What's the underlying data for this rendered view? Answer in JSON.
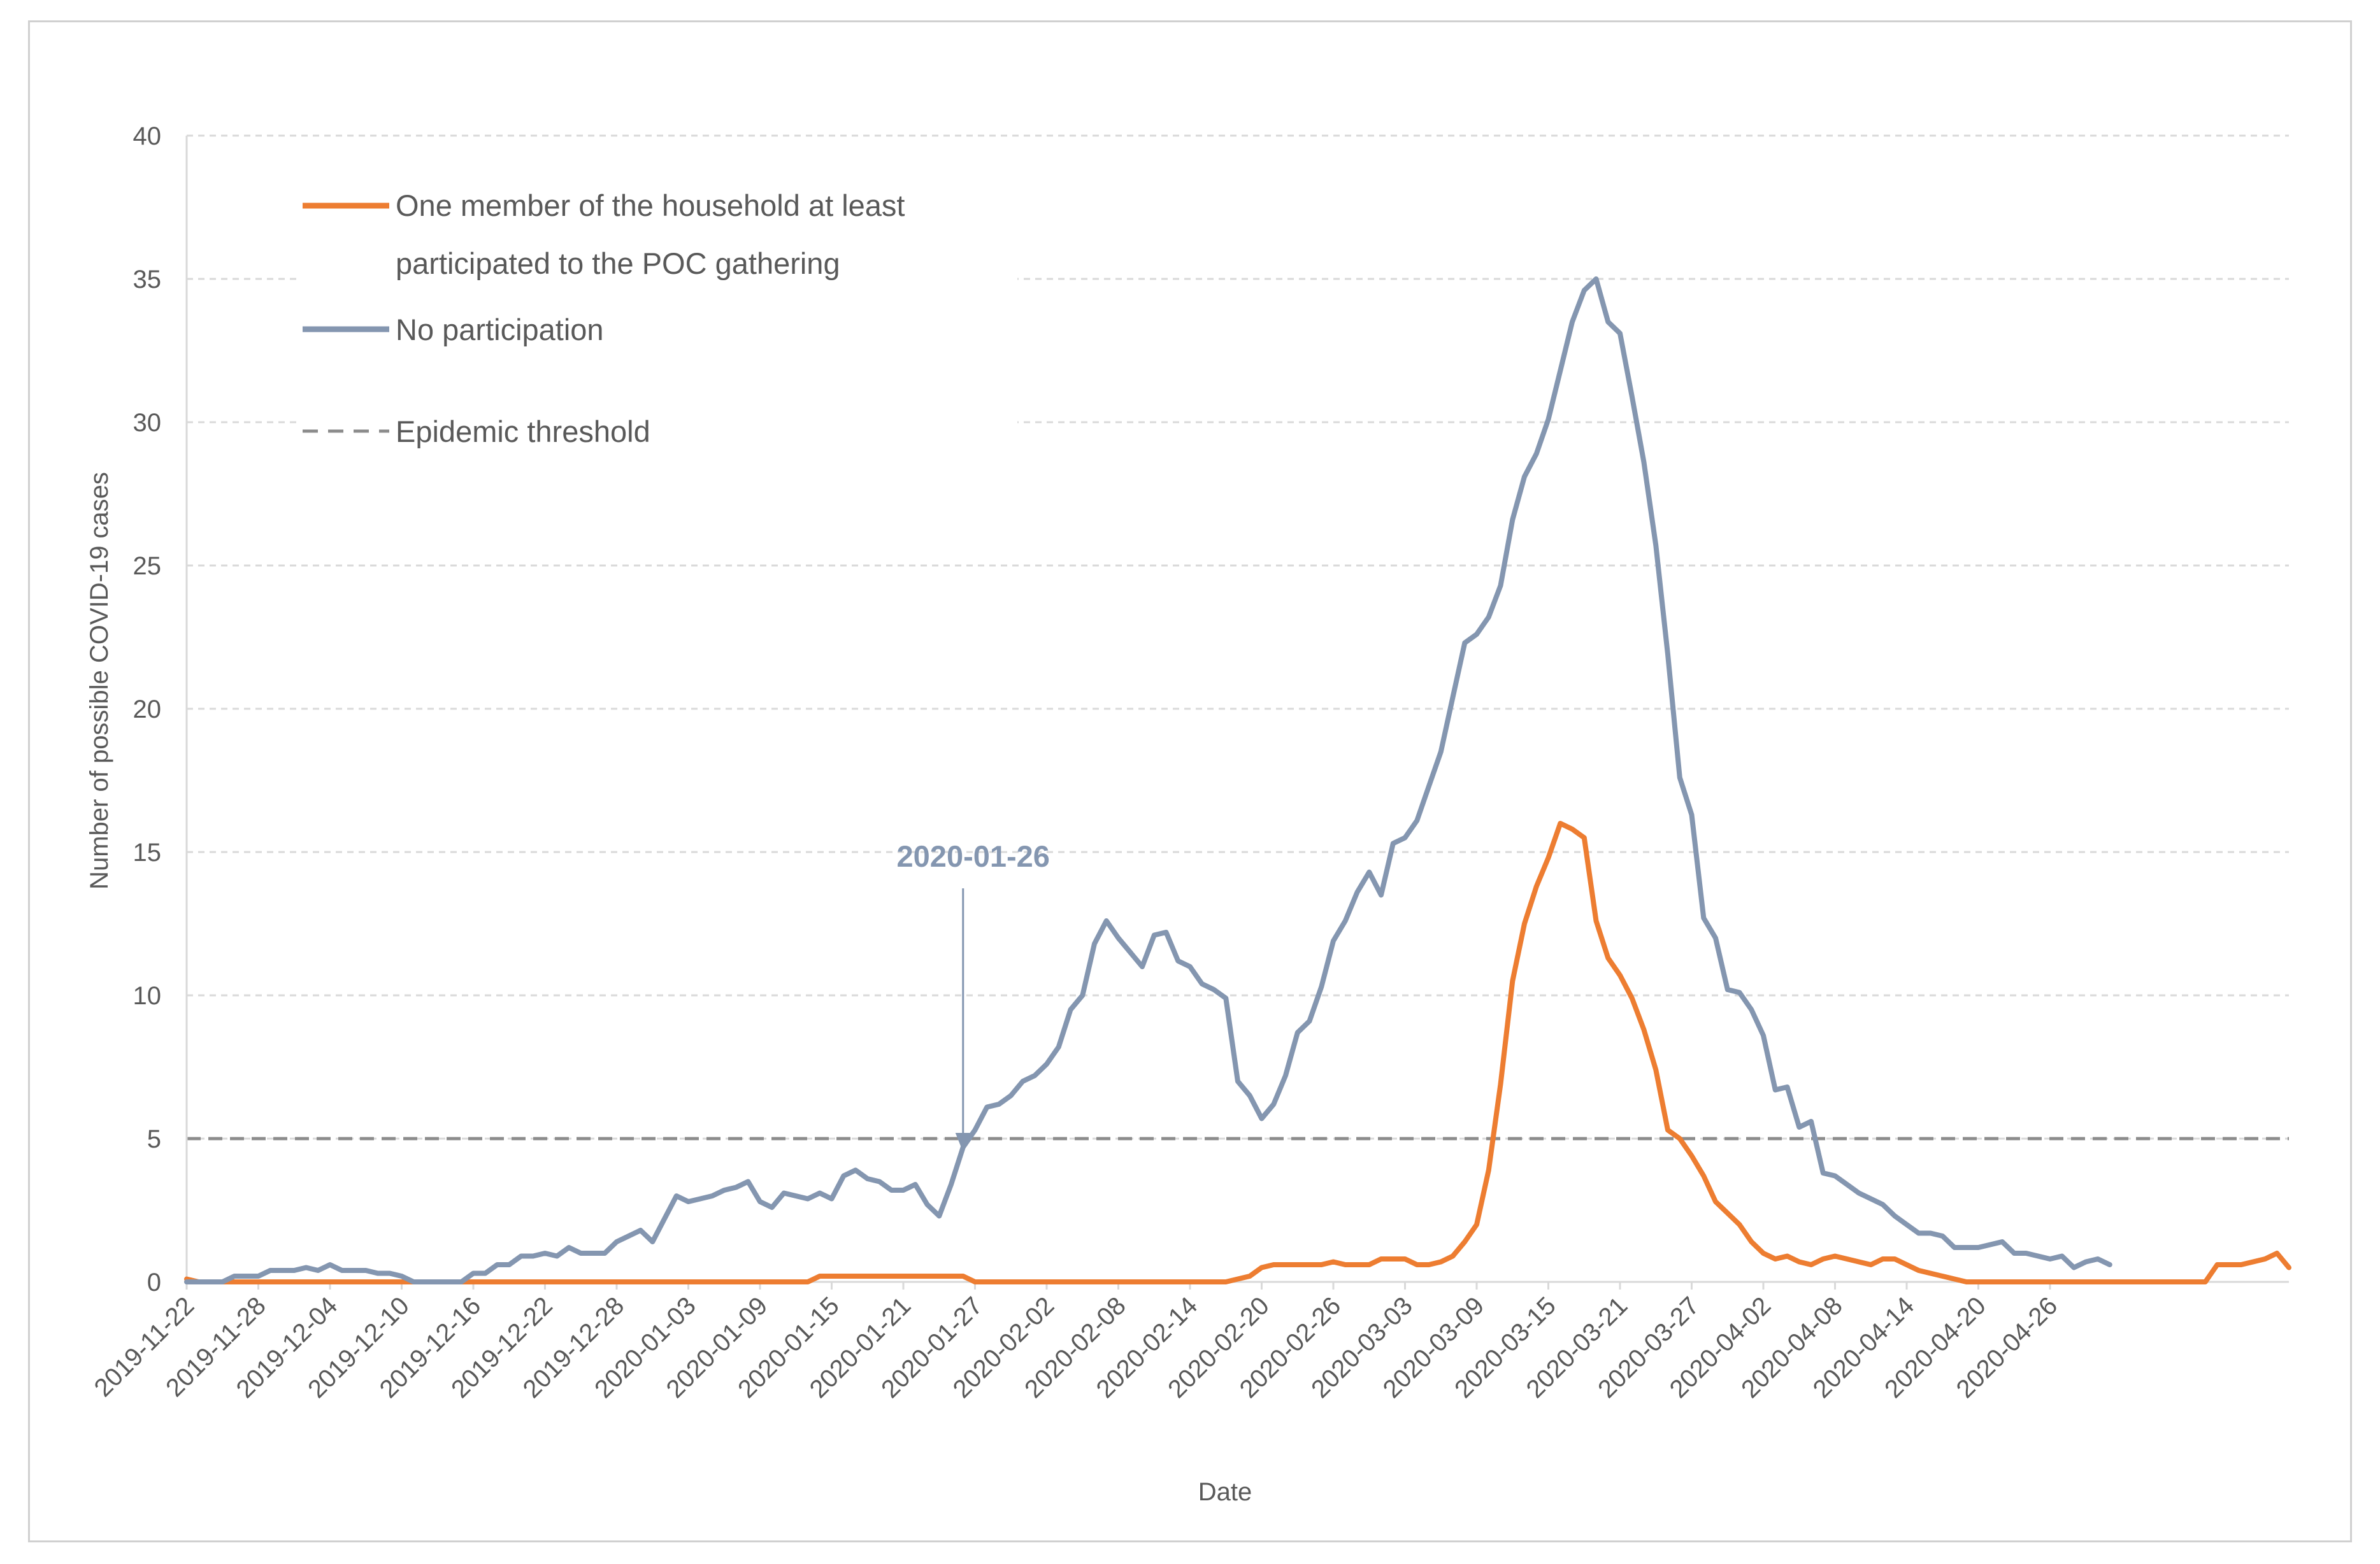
{
  "chart_data": {
    "type": "line",
    "title": "",
    "xlabel": "Date",
    "ylabel": "Number of possible COVID-19 cases",
    "ylim": [
      0,
      40
    ],
    "yticks": [
      0,
      5,
      10,
      15,
      20,
      25,
      30,
      35,
      40
    ],
    "start_date": "2019-11-22",
    "xtick_labels": [
      "2019-11-22",
      "2019-11-28",
      "2019-12-04",
      "2019-12-10",
      "2019-12-16",
      "2019-12-22",
      "2019-12-28",
      "2020-01-03",
      "2020-01-09",
      "2020-01-15",
      "2020-01-21",
      "2020-01-27",
      "2020-02-02",
      "2020-02-08",
      "2020-02-14",
      "2020-02-20",
      "2020-02-26",
      "2020-03-03",
      "2020-03-09",
      "2020-03-15",
      "2020-03-21",
      "2020-03-27",
      "2020-04-02",
      "2020-04-08",
      "2020-04-14",
      "2020-04-20",
      "2020-04-26"
    ],
    "grid": true,
    "legend_position": "top-left",
    "threshold": {
      "name": "Epidemic threshold",
      "value": 5,
      "color": "#8c8c8c"
    },
    "annotation": {
      "text": "2020-01-26",
      "date_index": 65,
      "color": "#8496b0"
    },
    "series": [
      {
        "name": "One member of the household at least participated to the POC gathering",
        "legend_line1": "One member of the household at least",
        "legend_line2": "participated to the POC gathering",
        "color": "#ed7d31",
        "values": [
          0.1,
          0,
          0,
          0,
          0,
          0,
          0,
          0,
          0,
          0,
          0,
          0,
          0,
          0,
          0,
          0,
          0,
          0,
          0,
          0,
          0,
          0,
          0,
          0,
          0,
          0,
          0,
          0,
          0,
          0,
          0,
          0,
          0,
          0,
          0,
          0,
          0,
          0,
          0,
          0,
          0,
          0,
          0,
          0,
          0,
          0,
          0,
          0,
          0,
          0,
          0,
          0,
          0,
          0.2,
          0.2,
          0.2,
          0.2,
          0.2,
          0.2,
          0.2,
          0.2,
          0.2,
          0.2,
          0.2,
          0.2,
          0.2,
          0,
          0,
          0,
          0,
          0,
          0,
          0,
          0,
          0,
          0,
          0,
          0,
          0,
          0,
          0,
          0,
          0,
          0,
          0,
          0,
          0,
          0,
          0.1,
          0.2,
          0.5,
          0.6,
          0.6,
          0.6,
          0.6,
          0.6,
          0.7,
          0.6,
          0.6,
          0.6,
          0.8,
          0.8,
          0.8,
          0.6,
          0.6,
          0.7,
          0.9,
          1.4,
          2.0,
          3.9,
          6.9,
          10.5,
          12.5,
          13.8,
          14.8,
          16.0,
          15.8,
          15.5,
          12.6,
          11.3,
          10.7,
          9.9,
          8.8,
          7.4,
          5.3,
          5.0,
          4.4,
          3.7,
          2.8,
          2.4,
          2.0,
          1.4,
          1.0,
          0.8,
          0.9,
          0.7,
          0.6,
          0.8,
          0.9,
          0.8,
          0.7,
          0.6,
          0.8,
          0.8,
          0.6,
          0.4,
          0.3,
          0.2,
          0.1,
          0,
          0,
          0,
          0,
          0,
          0,
          0,
          0,
          0,
          0,
          0,
          0,
          0,
          0,
          0,
          0,
          0,
          0,
          0,
          0,
          0,
          0.6,
          0.6,
          0.6,
          0.7,
          0.8,
          1.0,
          0.5
        ]
      },
      {
        "name": "No participation",
        "legend_line1": "No participation",
        "legend_line2": "",
        "color": "#8496b0",
        "values": [
          0,
          0,
          0,
          0,
          0.2,
          0.2,
          0.2,
          0.4,
          0.4,
          0.4,
          0.5,
          0.4,
          0.6,
          0.4,
          0.4,
          0.4,
          0.3,
          0.3,
          0.2,
          0,
          0,
          0,
          0,
          0,
          0.3,
          0.3,
          0.6,
          0.6,
          0.9,
          0.9,
          1.0,
          0.9,
          1.2,
          1.0,
          1.0,
          1.0,
          1.4,
          1.6,
          1.8,
          1.4,
          2.2,
          3.0,
          2.8,
          2.9,
          3.0,
          3.2,
          3.3,
          3.5,
          2.8,
          2.6,
          3.1,
          3.0,
          2.9,
          3.1,
          2.9,
          3.7,
          3.9,
          3.6,
          3.5,
          3.2,
          3.2,
          3.4,
          2.7,
          2.3,
          3.4,
          4.7,
          5.3,
          6.1,
          6.2,
          6.5,
          7.0,
          7.2,
          7.6,
          8.2,
          9.5,
          10.0,
          11.8,
          12.6,
          12.0,
          11.5,
          11.0,
          12.1,
          12.2,
          11.2,
          11.0,
          10.4,
          10.2,
          9.9,
          7.0,
          6.5,
          5.7,
          6.2,
          7.2,
          8.7,
          9.1,
          10.3,
          11.9,
          12.6,
          13.6,
          14.3,
          13.5,
          15.3,
          15.5,
          16.1,
          17.3,
          18.5,
          20.4,
          22.3,
          22.6,
          23.2,
          24.3,
          26.6,
          28.1,
          28.9,
          30.1,
          31.8,
          33.5,
          34.6,
          35.0,
          33.5,
          33.1,
          30.9,
          28.6,
          25.7,
          21.9,
          17.6,
          16.3,
          12.7,
          12.0,
          10.2,
          10.1,
          9.5,
          8.6,
          6.7,
          6.8,
          5.4,
          5.6,
          3.8,
          3.7,
          3.4,
          3.1,
          2.9,
          2.7,
          2.3,
          2.0,
          1.7,
          1.7,
          1.6,
          1.2,
          1.2,
          1.2,
          1.3,
          1.4,
          1.0,
          1.0,
          0.9,
          0.8,
          0.9,
          0.5,
          0.7,
          0.8,
          0.6
        ]
      }
    ]
  }
}
